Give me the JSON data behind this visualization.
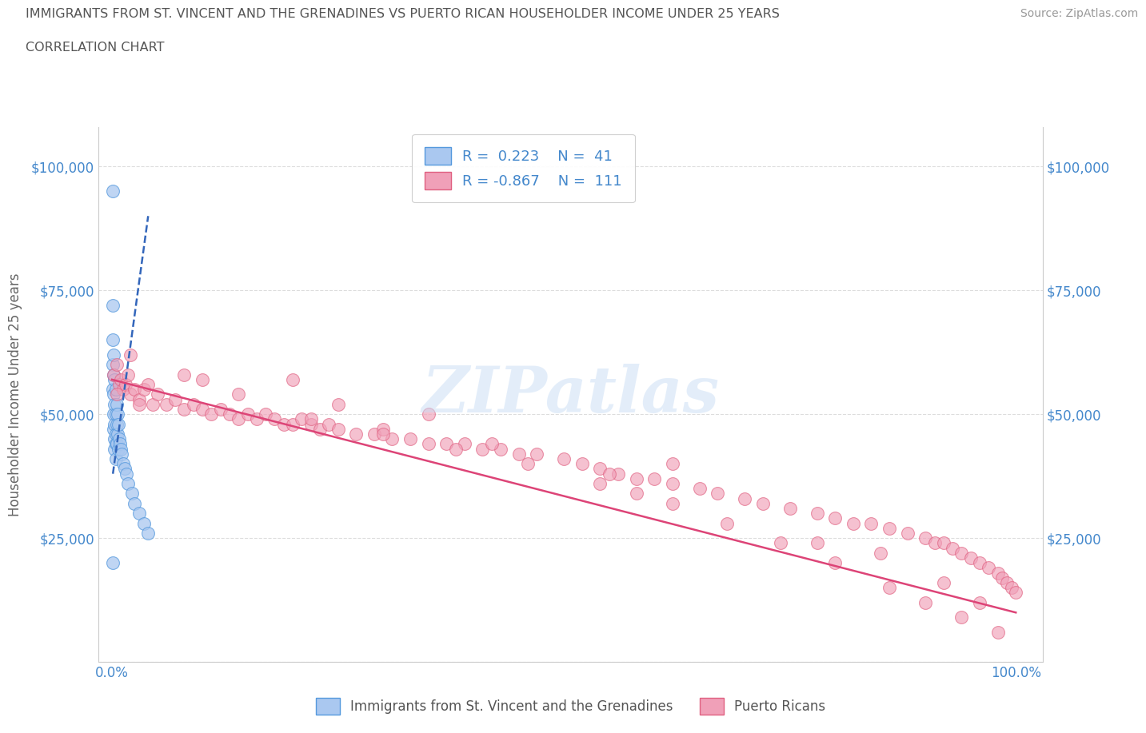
{
  "title_line1": "IMMIGRANTS FROM ST. VINCENT AND THE GRENADINES VS PUERTO RICAN HOUSEHOLDER INCOME UNDER 25 YEARS",
  "title_line2": "CORRELATION CHART",
  "source": "Source: ZipAtlas.com",
  "ylabel": "Householder Income Under 25 years",
  "watermark": "ZIPatlas",
  "legend_label_blue": "Immigrants from St. Vincent and the Grenadines",
  "legend_label_pink": "Puerto Ricans",
  "blue_R": 0.223,
  "blue_N": 41,
  "pink_R": -0.867,
  "pink_N": 111,
  "blue_dot_color": "#aac8f0",
  "blue_edge_color": "#5599dd",
  "pink_dot_color": "#f0a0b8",
  "pink_edge_color": "#e06080",
  "blue_line_color": "#3366bb",
  "pink_line_color": "#dd4477",
  "axis_label_color": "#4488cc",
  "title_color": "#555555",
  "grid_color": "#dddddd",
  "background": "#ffffff",
  "blue_scatter_x": [
    0.001,
    0.001,
    0.001,
    0.001,
    0.001,
    0.002,
    0.002,
    0.002,
    0.002,
    0.002,
    0.003,
    0.003,
    0.003,
    0.003,
    0.003,
    0.004,
    0.004,
    0.004,
    0.004,
    0.004,
    0.005,
    0.005,
    0.005,
    0.006,
    0.006,
    0.007,
    0.007,
    0.008,
    0.009,
    0.01,
    0.011,
    0.012,
    0.014,
    0.016,
    0.018,
    0.022,
    0.025,
    0.03,
    0.035,
    0.04,
    0.001
  ],
  "blue_scatter_y": [
    95000,
    72000,
    65000,
    60000,
    55000,
    62000,
    58000,
    54000,
    50000,
    47000,
    57000,
    52000,
    48000,
    45000,
    43000,
    55000,
    50000,
    46000,
    44000,
    41000,
    52000,
    48000,
    44000,
    50000,
    46000,
    48000,
    43000,
    45000,
    44000,
    43000,
    42000,
    40000,
    39000,
    38000,
    36000,
    34000,
    32000,
    30000,
    28000,
    26000,
    20000
  ],
  "blue_trend_x": [
    0.001,
    0.04
  ],
  "blue_trend_y": [
    38000,
    90000
  ],
  "pink_scatter_x": [
    0.002,
    0.005,
    0.008,
    0.01,
    0.012,
    0.015,
    0.018,
    0.02,
    0.025,
    0.03,
    0.035,
    0.04,
    0.045,
    0.05,
    0.06,
    0.07,
    0.08,
    0.09,
    0.1,
    0.11,
    0.12,
    0.13,
    0.14,
    0.15,
    0.16,
    0.17,
    0.18,
    0.19,
    0.2,
    0.21,
    0.22,
    0.23,
    0.24,
    0.25,
    0.27,
    0.29,
    0.31,
    0.33,
    0.35,
    0.37,
    0.39,
    0.41,
    0.43,
    0.45,
    0.47,
    0.5,
    0.52,
    0.54,
    0.56,
    0.58,
    0.6,
    0.62,
    0.65,
    0.67,
    0.7,
    0.72,
    0.75,
    0.78,
    0.8,
    0.82,
    0.84,
    0.86,
    0.88,
    0.9,
    0.91,
    0.92,
    0.93,
    0.94,
    0.95,
    0.96,
    0.97,
    0.98,
    0.985,
    0.99,
    0.995,
    1.0,
    0.3,
    0.55,
    0.2,
    0.35,
    0.62,
    0.78,
    0.1,
    0.25,
    0.42,
    0.58,
    0.85,
    0.92,
    0.96,
    0.02,
    0.08,
    0.14,
    0.22,
    0.3,
    0.38,
    0.46,
    0.54,
    0.62,
    0.68,
    0.74,
    0.8,
    0.86,
    0.9,
    0.94,
    0.98,
    0.005,
    0.03
  ],
  "pink_scatter_y": [
    58000,
    60000,
    56000,
    57000,
    55000,
    56000,
    58000,
    54000,
    55000,
    53000,
    55000,
    56000,
    52000,
    54000,
    52000,
    53000,
    51000,
    52000,
    51000,
    50000,
    51000,
    50000,
    49000,
    50000,
    49000,
    50000,
    49000,
    48000,
    48000,
    49000,
    48000,
    47000,
    48000,
    47000,
    46000,
    46000,
    45000,
    45000,
    44000,
    44000,
    44000,
    43000,
    43000,
    42000,
    42000,
    41000,
    40000,
    39000,
    38000,
    37000,
    37000,
    36000,
    35000,
    34000,
    33000,
    32000,
    31000,
    30000,
    29000,
    28000,
    28000,
    27000,
    26000,
    25000,
    24000,
    24000,
    23000,
    22000,
    21000,
    20000,
    19000,
    18000,
    17000,
    16000,
    15000,
    14000,
    47000,
    38000,
    57000,
    50000,
    40000,
    24000,
    57000,
    52000,
    44000,
    34000,
    22000,
    16000,
    12000,
    62000,
    58000,
    54000,
    49000,
    46000,
    43000,
    40000,
    36000,
    32000,
    28000,
    24000,
    20000,
    15000,
    12000,
    9000,
    6000,
    54000,
    52000
  ],
  "pink_trend_x": [
    0.0,
    1.0
  ],
  "pink_trend_y": [
    57000,
    10000
  ],
  "ylim": [
    0,
    108000
  ],
  "xlim": [
    -0.015,
    1.03
  ],
  "ytick_vals": [
    0,
    25000,
    50000,
    75000,
    100000
  ],
  "ytick_labs": [
    "",
    "$25,000",
    "$50,000",
    "$75,000",
    "$100,000"
  ],
  "xtick_vals": [
    0.0,
    0.1,
    0.2,
    0.3,
    0.4,
    0.5,
    0.6,
    0.7,
    0.8,
    0.9,
    1.0
  ],
  "xtick_labs": [
    "0.0%",
    "",
    "",
    "",
    "",
    "",
    "",
    "",
    "",
    "",
    "100.0%"
  ]
}
